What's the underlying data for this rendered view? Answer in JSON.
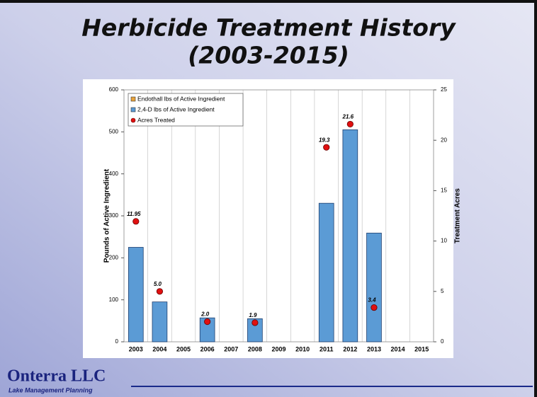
{
  "chart_data": {
    "type": "bar",
    "title_lines": [
      "Herbicide Treatment History",
      "(2003-2015)"
    ],
    "y_label": "Pounds of Active Ingredient",
    "y2_label": "Treatment Acres",
    "categories": [
      "2003",
      "2004",
      "2005",
      "2006",
      "2007",
      "2008",
      "2009",
      "2010",
      "2011",
      "2012",
      "2013",
      "2014",
      "2015"
    ],
    "ylim": [
      0,
      600
    ],
    "yticks": [
      0,
      100,
      200,
      300,
      400,
      500,
      600
    ],
    "y2lim": [
      0,
      25
    ],
    "y2ticks": [
      0,
      5,
      10,
      15,
      20,
      25
    ],
    "legend": "upper left",
    "series": [
      {
        "name": "Endothall lbs of Active Ingredient",
        "color": "#e8a33a",
        "values": [
          0,
          0,
          0,
          0,
          0,
          0,
          0,
          0,
          0,
          0,
          0,
          0,
          0
        ]
      },
      {
        "name": "2,4-D lbs of Active Ingredient",
        "color": "#5b9bd5",
        "values": [
          225,
          95,
          null,
          57,
          null,
          55,
          null,
          null,
          330,
          505,
          259,
          null,
          null
        ]
      },
      {
        "name": "Acres Treated",
        "color": "#e01010",
        "type": "scatter",
        "axis": "y2",
        "values": [
          11.95,
          5.0,
          null,
          2.0,
          null,
          1.9,
          null,
          null,
          19.3,
          21.6,
          3.4,
          null,
          null
        ],
        "value_labels": [
          "11.95",
          "5.0",
          null,
          "2.0",
          null,
          "1.9",
          null,
          null,
          "19.3",
          "21.6",
          "3.4",
          null,
          null
        ]
      }
    ],
    "logo": "Onterra LLC",
    "logo_tagline": "Lake Management Planning"
  }
}
